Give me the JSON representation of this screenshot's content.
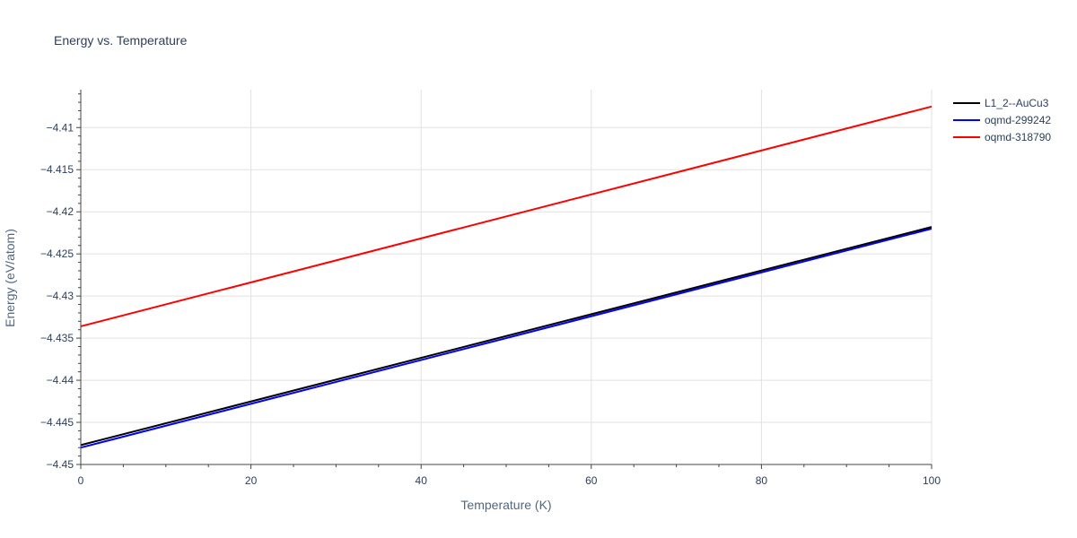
{
  "chart_data": {
    "type": "line",
    "title": "Energy vs. Temperature",
    "xlabel": "Temperature (K)",
    "ylabel": "Energy (eV/atom)",
    "xlim": [
      0,
      100
    ],
    "ylim": [
      -4.45,
      -4.4055
    ],
    "x_ticks": [
      0,
      20,
      40,
      60,
      80,
      100
    ],
    "y_ticks": [
      -4.45,
      -4.445,
      -4.44,
      -4.435,
      -4.43,
      -4.425,
      -4.42,
      -4.415,
      -4.41
    ],
    "x_tick_labels": [
      "0",
      "20",
      "40",
      "60",
      "80",
      "100"
    ],
    "y_tick_labels": [
      "−4.45",
      "−4.445",
      "−4.44",
      "−4.435",
      "−4.43",
      "−4.425",
      "−4.42",
      "−4.415",
      "−4.41"
    ],
    "grid": true,
    "legend_position": "top-right",
    "series": [
      {
        "name": "L1_2--AuCu3",
        "color": "#000000",
        "x": [
          0,
          100
        ],
        "y": [
          -4.4477,
          -4.4218
        ]
      },
      {
        "name": "oqmd-299242",
        "color": "#0000ff",
        "x": [
          0,
          100
        ],
        "y": [
          -4.448,
          -4.422
        ]
      },
      {
        "name": "oqmd-318790",
        "color": "#ff0000",
        "x": [
          0,
          100
        ],
        "y": [
          -4.4336,
          -4.4075
        ]
      }
    ]
  }
}
